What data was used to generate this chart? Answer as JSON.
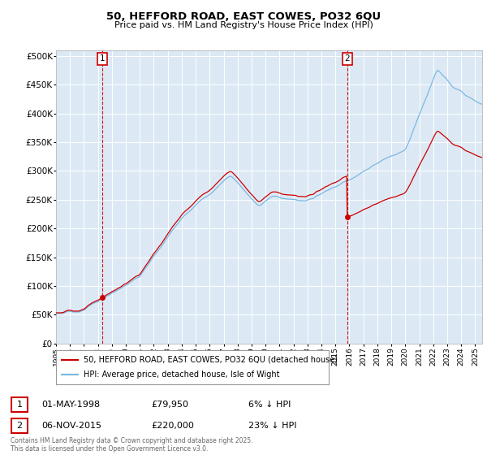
{
  "title_line1": "50, HEFFORD ROAD, EAST COWES, PO32 6QU",
  "title_line2": "Price paid vs. HM Land Registry's House Price Index (HPI)",
  "ylim": [
    0,
    510000
  ],
  "yticks": [
    0,
    50000,
    100000,
    150000,
    200000,
    250000,
    300000,
    350000,
    400000,
    450000,
    500000
  ],
  "ytick_labels": [
    "£0",
    "£50K",
    "£100K",
    "£150K",
    "£200K",
    "£250K",
    "£300K",
    "£350K",
    "£400K",
    "£450K",
    "£500K"
  ],
  "background_color": "#ffffff",
  "plot_bg_color": "#dce9f5",
  "grid_color": "#ffffff",
  "hpi_color": "#7ab8e0",
  "price_color": "#cc0000",
  "vline_color": "#cc0000",
  "transaction1_date": 1998.33,
  "transaction1_value": 79950,
  "transaction2_date": 2015.84,
  "transaction2_value": 220000,
  "annotation1": {
    "label": "1",
    "date_str": "01-MAY-1998",
    "price_str": "£79,950",
    "pct_str": "6% ↓ HPI"
  },
  "annotation2": {
    "label": "2",
    "date_str": "06-NOV-2015",
    "price_str": "£220,000",
    "pct_str": "23% ↓ HPI"
  },
  "legend_line1": "50, HEFFORD ROAD, EAST COWES, PO32 6QU (detached house)",
  "legend_line2": "HPI: Average price, detached house, Isle of Wight",
  "footer": "Contains HM Land Registry data © Crown copyright and database right 2025.\nThis data is licensed under the Open Government Licence v3.0.",
  "xlim_start": 1995.0,
  "xlim_end": 2025.5
}
